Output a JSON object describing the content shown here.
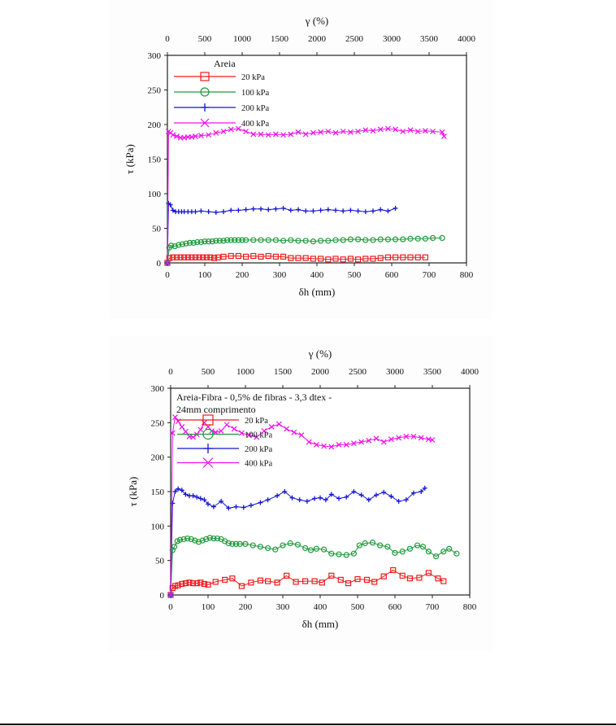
{
  "chart_data": [
    {
      "type": "line",
      "title": "Areia",
      "xlabel": "δh (mm)",
      "ylabel": "τ (kPa)",
      "x2label": "γ (%)",
      "xlim": [
        0,
        800
      ],
      "ylim": [
        0,
        300
      ],
      "x2lim": [
        0,
        4000
      ],
      "xticks": [
        "0",
        "100",
        "200",
        "300",
        "400",
        "500",
        "600",
        "700",
        "800"
      ],
      "yticks": [
        "0",
        "50",
        "100",
        "150",
        "200",
        "250",
        "300"
      ],
      "x2ticks": [
        "0",
        "500",
        "1000",
        "1500",
        "2000",
        "2500",
        "3000",
        "3500",
        "4000"
      ],
      "grid": false,
      "legend_position": "top-left",
      "series": [
        {
          "name": "20 kPa",
          "color": "#ee1c1c",
          "marker": "square",
          "x": [
            0,
            5,
            15,
            25,
            35,
            45,
            55,
            65,
            75,
            85,
            95,
            105,
            115,
            125,
            135,
            150,
            170,
            190,
            210,
            230,
            250,
            270,
            290,
            310,
            330,
            350,
            370,
            390,
            410,
            430,
            450,
            470,
            490,
            510,
            530,
            550,
            570,
            590,
            610,
            630,
            650,
            670,
            690
          ],
          "y": [
            0,
            7,
            8,
            8,
            8,
            8,
            8,
            8,
            8,
            8,
            8,
            8,
            8,
            7,
            8,
            9,
            10,
            10,
            9,
            10,
            9,
            10,
            9,
            9,
            7,
            7,
            7,
            6,
            6,
            5,
            6,
            5,
            6,
            5,
            6,
            6,
            7,
            8,
            8,
            8,
            8,
            8,
            8
          ]
        },
        {
          "name": "100 kPa",
          "color": "#1e9a3a",
          "marker": "circle",
          "x": [
            0,
            5,
            10,
            20,
            30,
            40,
            50,
            60,
            70,
            80,
            90,
            100,
            110,
            120,
            130,
            140,
            150,
            160,
            170,
            180,
            190,
            200,
            210,
            230,
            250,
            270,
            290,
            310,
            330,
            350,
            370,
            390,
            410,
            430,
            450,
            470,
            490,
            510,
            530,
            550,
            570,
            590,
            610,
            630,
            650,
            670,
            690,
            710,
            735
          ],
          "y": [
            0,
            22,
            25,
            24,
            26,
            27,
            28,
            29,
            29,
            30,
            30,
            31,
            31,
            31,
            32,
            32,
            32,
            33,
            33,
            33,
            33,
            33,
            33,
            33,
            33,
            33,
            33,
            32,
            33,
            32,
            32,
            31,
            32,
            32,
            33,
            33,
            34,
            34,
            33,
            33,
            34,
            34,
            34,
            34,
            35,
            35,
            35,
            36,
            36
          ]
        },
        {
          "name": "200 kPa",
          "color": "#1414d2",
          "marker": "plus",
          "x": [
            0,
            3,
            8,
            15,
            22,
            30,
            38,
            45,
            55,
            65,
            75,
            90,
            110,
            130,
            150,
            170,
            190,
            210,
            230,
            250,
            270,
            290,
            310,
            330,
            350,
            370,
            390,
            410,
            430,
            450,
            470,
            490,
            510,
            530,
            550,
            570,
            590,
            610
          ],
          "y": [
            0,
            86,
            84,
            76,
            74,
            74,
            74,
            74,
            74,
            74,
            74,
            75,
            74,
            73,
            74,
            76,
            76,
            77,
            78,
            78,
            77,
            78,
            79,
            76,
            77,
            75,
            75,
            76,
            77,
            76,
            75,
            76,
            75,
            74,
            75,
            77,
            75,
            79
          ]
        },
        {
          "name": "400 kPa",
          "color": "#ee10ee",
          "marker": "x",
          "x": [
            0,
            3,
            8,
            15,
            25,
            35,
            45,
            55,
            65,
            75,
            90,
            110,
            130,
            150,
            170,
            190,
            210,
            230,
            250,
            270,
            290,
            310,
            330,
            350,
            370,
            390,
            410,
            430,
            450,
            470,
            490,
            510,
            530,
            550,
            570,
            590,
            610,
            630,
            650,
            670,
            690,
            710,
            735,
            740
          ],
          "y": [
            0,
            190,
            188,
            185,
            183,
            181,
            181,
            182,
            182,
            183,
            184,
            185,
            188,
            190,
            193,
            194,
            190,
            186,
            186,
            185,
            186,
            185,
            186,
            189,
            186,
            188,
            189,
            190,
            188,
            190,
            189,
            190,
            192,
            191,
            193,
            194,
            193,
            190,
            192,
            190,
            191,
            190,
            189,
            183
          ]
        }
      ]
    },
    {
      "type": "line",
      "title": "Areia-Fibra - 0,5% de fibras - 3,3 dtex - 24mm comprimento",
      "xlabel": "δh (mm)",
      "ylabel": "τ (kPa)",
      "x2label": "γ (%)",
      "xlim": [
        0,
        800
      ],
      "ylim": [
        0,
        300
      ],
      "x2lim": [
        0,
        4000
      ],
      "xticks": [
        "0",
        "100",
        "200",
        "300",
        "400",
        "500",
        "600",
        "700",
        "800"
      ],
      "yticks": [
        "0",
        "50",
        "100",
        "150",
        "200",
        "250",
        "300"
      ],
      "x2ticks": [
        "0",
        "500",
        "1000",
        "1500",
        "2000",
        "2500",
        "3000",
        "3500",
        "4000"
      ],
      "grid": false,
      "legend_position": "top-left",
      "series": [
        {
          "name": "20 kPa",
          "color": "#ee1c1c",
          "marker": "square",
          "x": [
            0,
            5,
            12,
            20,
            30,
            40,
            50,
            60,
            70,
            80,
            90,
            100,
            120,
            145,
            165,
            190,
            215,
            240,
            260,
            285,
            310,
            335,
            360,
            385,
            405,
            430,
            455,
            475,
            500,
            525,
            545,
            570,
            595,
            620,
            640,
            665,
            690,
            715,
            730
          ],
          "y": [
            0,
            10,
            13,
            14,
            16,
            17,
            18,
            17,
            17,
            18,
            16,
            15,
            19,
            22,
            24,
            13,
            18,
            21,
            20,
            18,
            28,
            19,
            20,
            20,
            18,
            28,
            22,
            17,
            23,
            22,
            19,
            27,
            36,
            28,
            24,
            25,
            32,
            24,
            20
          ]
        },
        {
          "name": "100 kPa",
          "color": "#1e9a3a",
          "marker": "circle",
          "x": [
            0,
            5,
            10,
            18,
            25,
            35,
            45,
            55,
            65,
            75,
            85,
            95,
            105,
            115,
            125,
            135,
            145,
            155,
            165,
            175,
            185,
            200,
            220,
            240,
            260,
            280,
            300,
            320,
            340,
            360,
            375,
            390,
            410,
            430,
            450,
            470,
            490,
            505,
            520,
            540,
            560,
            580,
            600,
            620,
            640,
            660,
            675,
            690,
            710,
            730,
            745,
            765
          ],
          "y": [
            0,
            65,
            70,
            78,
            80,
            81,
            82,
            81,
            79,
            77,
            79,
            81,
            83,
            82,
            82,
            81,
            78,
            75,
            74,
            74,
            74,
            74,
            72,
            70,
            68,
            66,
            72,
            75,
            73,
            68,
            65,
            67,
            66,
            60,
            59,
            58,
            60,
            72,
            75,
            76,
            72,
            70,
            61,
            63,
            67,
            72,
            70,
            63,
            56,
            63,
            67,
            60
          ]
        },
        {
          "name": "200 kPa",
          "color": "#1414d2",
          "marker": "plus",
          "x": [
            0,
            5,
            12,
            20,
            30,
            40,
            50,
            60,
            70,
            80,
            90,
            100,
            115,
            135,
            155,
            175,
            195,
            215,
            240,
            260,
            285,
            305,
            325,
            345,
            365,
            385,
            400,
            415,
            430,
            450,
            470,
            490,
            510,
            530,
            550,
            570,
            590,
            610,
            630,
            650,
            670,
            680
          ],
          "y": [
            0,
            133,
            150,
            154,
            152,
            146,
            144,
            144,
            142,
            140,
            138,
            132,
            128,
            136,
            126,
            128,
            127,
            130,
            134,
            138,
            144,
            150,
            141,
            138,
            136,
            140,
            141,
            138,
            146,
            140,
            142,
            150,
            145,
            138,
            145,
            149,
            143,
            136,
            138,
            148,
            150,
            155
          ]
        },
        {
          "name": "400 kPa",
          "color": "#ee10ee",
          "marker": "x",
          "x": [
            0,
            5,
            12,
            20,
            30,
            40,
            50,
            60,
            70,
            80,
            90,
            100,
            110,
            120,
            135,
            150,
            170,
            190,
            210,
            230,
            250,
            270,
            290,
            310,
            330,
            350,
            370,
            390,
            410,
            430,
            450,
            470,
            490,
            510,
            530,
            550,
            570,
            590,
            610,
            630,
            650,
            670,
            690,
            700
          ],
          "y": [
            0,
            235,
            258,
            252,
            244,
            237,
            230,
            229,
            233,
            240,
            250,
            244,
            238,
            236,
            238,
            247,
            241,
            235,
            232,
            229,
            238,
            244,
            248,
            241,
            236,
            232,
            222,
            218,
            216,
            215,
            218,
            218,
            220,
            222,
            224,
            227,
            222,
            226,
            228,
            230,
            230,
            228,
            226,
            225
          ]
        }
      ]
    }
  ]
}
